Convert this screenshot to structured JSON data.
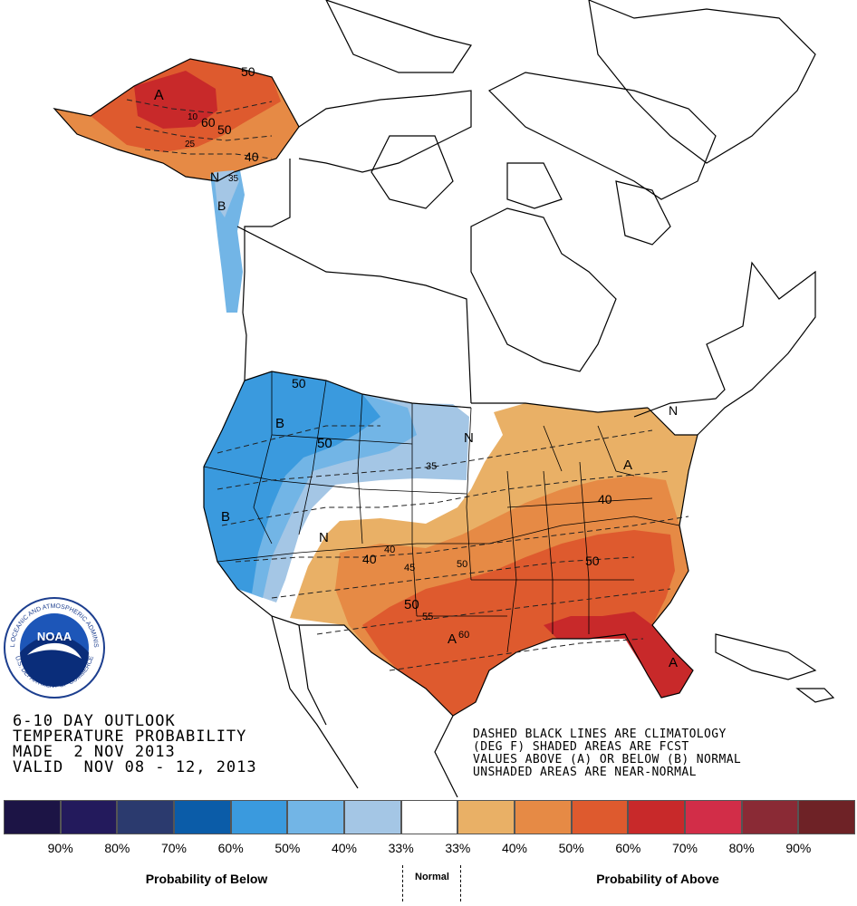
{
  "caption_left": [
    "6-10 DAY OUTLOOK",
    "TEMPERATURE PROBABILITY",
    "MADE  2 NOV 2013",
    "VALID  NOV 08 - 12, 2013"
  ],
  "caption_right": [
    "DASHED BLACK LINES ARE CLIMATOLOGY",
    "(DEG F) SHADED AREAS ARE FCST",
    "VALUES ABOVE (A) OR BELOW (B) NORMAL",
    "UNSHADED AREAS ARE NEAR-NORMAL"
  ],
  "logo": {
    "text": "NOAA",
    "ring_top": "NATIONAL OCEANIC AND ATMOSPHERIC ADMINISTRATION",
    "ring_bottom": "U.S. DEPARTMENT OF COMMERCE"
  },
  "legend": {
    "colors": [
      "#1c1445",
      "#231a5c",
      "#2b3a6e",
      "#0b5ca8",
      "#3a9ade",
      "#72b5e6",
      "#a4c6e5",
      "#ffffff",
      "#e9b066",
      "#e68a45",
      "#de5a2e",
      "#c8292a",
      "#d22d48",
      "#8a2a35",
      "#6e2226"
    ],
    "ticks": [
      "90%",
      "80%",
      "70%",
      "60%",
      "50%",
      "40%",
      "33%",
      "33%",
      "40%",
      "50%",
      "60%",
      "70%",
      "80%",
      "90%"
    ],
    "below_label": "Probability of Below",
    "normal_label": "Normal",
    "above_label": "Probability of Above"
  },
  "map_labels": {
    "alaska": [
      "A",
      "50",
      "60",
      "50",
      "40",
      "N",
      "B",
      "35",
      "10",
      "25"
    ],
    "west": [
      "50",
      "B",
      "50",
      "B",
      "N",
      "35"
    ],
    "east": [
      "N",
      "A",
      "40",
      "50",
      "A",
      "N"
    ],
    "south": [
      "40",
      "40",
      "45",
      "50",
      "50",
      "55",
      "A",
      "60"
    ]
  },
  "colors": {
    "above_low": "#e9b066",
    "above_mid": "#e68a45",
    "above_high": "#de5a2e",
    "above_top": "#c8292a",
    "below_high": "#3a9ade",
    "below_mid": "#72b5e6",
    "below_low": "#a4c6e5"
  }
}
